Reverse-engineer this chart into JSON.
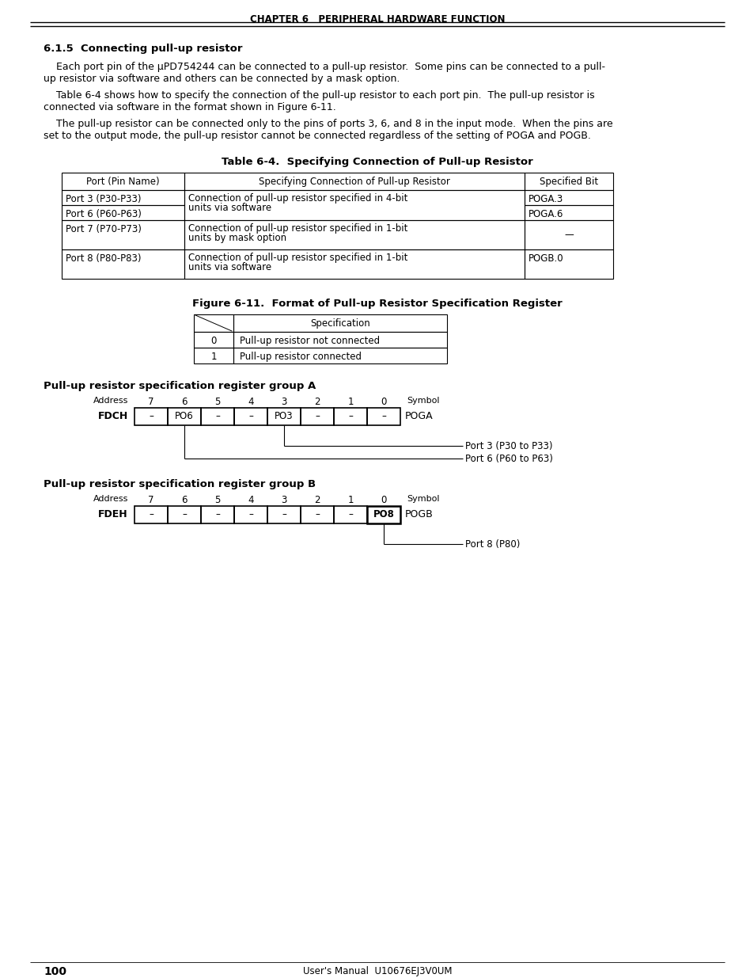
{
  "page_title": "CHAPTER 6   PERIPHERAL HARDWARE FUNCTION",
  "section_title": "6.1.5  Connecting pull-up resistor",
  "para1_line1": "    Each port pin of the μPD754244 can be connected to a pull-up resistor.  Some pins can be connected to a pull-",
  "para1_line2": "up resistor via software and others can be connected by a mask option.",
  "para2_line1": "    Table 6-4 shows how to specify the connection of the pull-up resistor to each port pin.  The pull-up resistor is",
  "para2_line2": "connected via software in the format shown in Figure 6-11.",
  "para3_line1": "    The pull-up resistor can be connected only to the pins of ports 3, 6, and 8 in the input mode.  When the pins are",
  "para3_line2": "set to the output mode, the pull-up resistor cannot be connected regardless of the setting of POGA and POGB.",
  "table_title": "Table 6-4.  Specifying Connection of Pull-up Resistor",
  "table_headers": [
    "Port (Pin Name)",
    "Specifying Connection of Pull-up Resistor",
    "Specified Bit"
  ],
  "figure_title": "Figure 6-11.  Format of Pull-up Resistor Specification Register",
  "spec_rows": [
    [
      "0",
      "Pull-up resistor not connected"
    ],
    [
      "1",
      "Pull-up resistor connected"
    ]
  ],
  "group_a_title": "Pull-up resistor specification register group A",
  "group_a_addr": "FDCH",
  "group_a_cells": [
    "–",
    "PO6",
    "–",
    "–",
    "PO3",
    "–",
    "–",
    "–"
  ],
  "group_a_symbol": "POGA",
  "group_a_ann1": "Port 3 (P30 to P33)",
  "group_a_ann2": "Port 6 (P60 to P63)",
  "group_b_title": "Pull-up resistor specification register group B",
  "group_b_addr": "FDEH",
  "group_b_cells": [
    "–",
    "–",
    "–",
    "–",
    "–",
    "–",
    "–",
    "PO8"
  ],
  "group_b_symbol": "POGB",
  "group_b_ann1": "Port 8 (P80)",
  "bit_labels": [
    "7",
    "6",
    "5",
    "4",
    "3",
    "2",
    "1",
    "0"
  ],
  "footer_page": "100",
  "footer_manual": "User's Manual  U10676EJ3V0UM",
  "bg_color": "#ffffff",
  "text_color": "#000000"
}
